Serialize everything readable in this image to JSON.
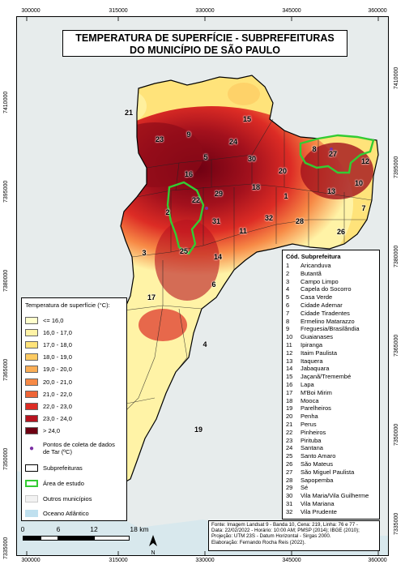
{
  "title": {
    "line1": "TEMPERATURA DE SUPERFÍCIE - SUBPREFEITURAS",
    "line2": "DO MUNICÍPIO DE SÃO PAULO"
  },
  "axis": {
    "x_ticks": [
      "300000",
      "315000",
      "330000",
      "345000",
      "360000"
    ],
    "y_ticks": [
      "7410000",
      "7395000",
      "7380000",
      "7365000",
      "7350000",
      "7335000"
    ]
  },
  "legend": {
    "title": "Temperatura de superfície (°C):",
    "classes": [
      {
        "label": "<= 16,0",
        "color": "#ffffcc"
      },
      {
        "label": "16,0 - 17,0",
        "color": "#fff3a6"
      },
      {
        "label": "17,0 - 18,0",
        "color": "#ffe37a"
      },
      {
        "label": "18,0 - 19,0",
        "color": "#fdcb62"
      },
      {
        "label": "19,0 - 20,0",
        "color": "#fbae56"
      },
      {
        "label": "20,0 - 21,0",
        "color": "#f78a46"
      },
      {
        "label": "21,0 - 22,0",
        "color": "#ef6537"
      },
      {
        "label": "22,0 - 23,0",
        "color": "#dd2c25"
      },
      {
        "label": "23,0 - 24,0",
        "color": "#b7131f"
      },
      {
        "label": "> 24,0",
        "color": "#6e0012"
      }
    ],
    "points_label": "Pontos de coleta de dados de Tar (ºC)",
    "subpref_label": "Subprefeituras",
    "study_area_label": "Área de estudo",
    "other_label": "Outros municípios",
    "ocean_label": "Oceano Atlântico",
    "point_color": "#7b2fa3",
    "study_area_color": "#33cc33",
    "other_color": "#f2f2f2",
    "ocean_color": "#bfe0ef"
  },
  "table": {
    "header": "Cód. Subprefeitura",
    "rows": [
      {
        "code": "1",
        "name": "Aricanduva"
      },
      {
        "code": "2",
        "name": "Butantã"
      },
      {
        "code": "3",
        "name": "Campo Limpo"
      },
      {
        "code": "4",
        "name": "Capela do Socorro"
      },
      {
        "code": "5",
        "name": "Casa Verde"
      },
      {
        "code": "6",
        "name": "Cidade Ademar"
      },
      {
        "code": "7",
        "name": "Cidade Tiradentes"
      },
      {
        "code": "8",
        "name": "Ermelino Matarazzo"
      },
      {
        "code": "9",
        "name": "Freguesia/Brasilândia"
      },
      {
        "code": "10",
        "name": "Guaianases"
      },
      {
        "code": "11",
        "name": "Ipiranga"
      },
      {
        "code": "12",
        "name": "Itaim Paulista"
      },
      {
        "code": "13",
        "name": "Itaquera"
      },
      {
        "code": "14",
        "name": "Jabaquara"
      },
      {
        "code": "15",
        "name": "Jaçanã/Tremembé"
      },
      {
        "code": "16",
        "name": "Lapa"
      },
      {
        "code": "17",
        "name": "M'Boi Mirim"
      },
      {
        "code": "18",
        "name": "Mooca"
      },
      {
        "code": "19",
        "name": "Parelheiros"
      },
      {
        "code": "20",
        "name": "Penha"
      },
      {
        "code": "21",
        "name": "Perus"
      },
      {
        "code": "22",
        "name": "Pinheiros"
      },
      {
        "code": "23",
        "name": "Pirituba"
      },
      {
        "code": "24",
        "name": "Santana"
      },
      {
        "code": "25",
        "name": "Santo Amaro"
      },
      {
        "code": "26",
        "name": "São Mateus"
      },
      {
        "code": "27",
        "name": "São Miguel Paulista"
      },
      {
        "code": "28",
        "name": "Sapopemba"
      },
      {
        "code": "29",
        "name": "Sé"
      },
      {
        "code": "30",
        "name": "Vila Maria/Vila Guilherme"
      },
      {
        "code": "31",
        "name": "Vila Mariana"
      },
      {
        "code": "32",
        "name": "Vila Prudente"
      }
    ]
  },
  "source": {
    "line1": "Fonte: Imagem Landsat 9 - Banda 10, Cena: 219, Linha: 76 e 77 -",
    "line2": "Data: 22/02/2022 - Horário: 10:00 AM; PMSP (2014); IBGE (2010);",
    "line3": "Projeção: UTM 23S - Datum Horizontal - Sirgas 2000.",
    "line4": "Elaboração: Fernando Rocha Reis (2022)."
  },
  "scale": {
    "ticks": [
      "0",
      "6",
      "12",
      "18 km"
    ]
  },
  "north": {
    "label": "N"
  },
  "map_labels": [
    "21",
    "23",
    "9",
    "15",
    "24",
    "5",
    "30",
    "8",
    "27",
    "12",
    "16",
    "20",
    "18",
    "10",
    "22",
    "29",
    "1",
    "13",
    "2",
    "31",
    "32",
    "28",
    "7",
    "11",
    "26",
    "3",
    "25",
    "14",
    "6",
    "17",
    "4",
    "19"
  ]
}
